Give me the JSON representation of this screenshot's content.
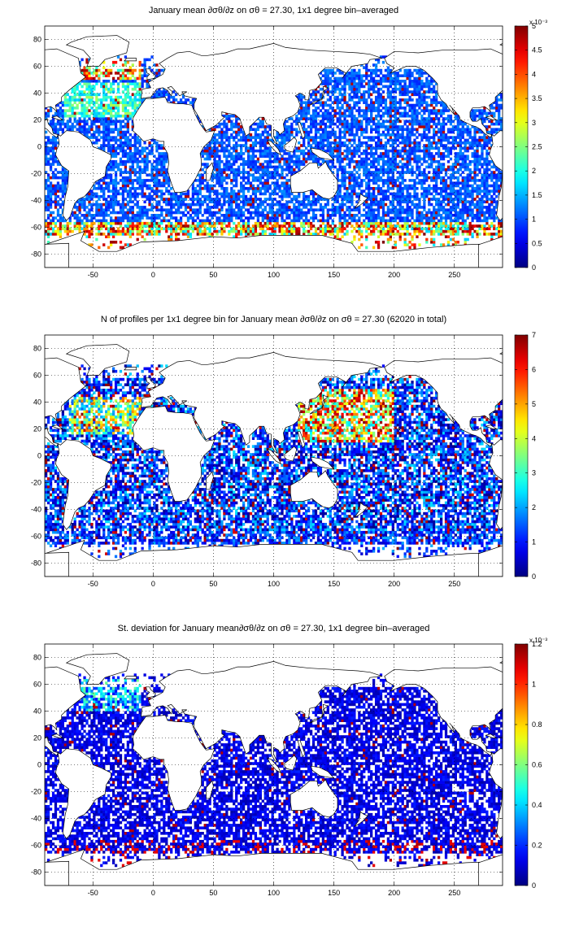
{
  "panels": [
    {
      "title_prefix": "January mean ",
      "title_mid": " on ",
      "title_suffix": " = 27.30, 1x1 degree bin–averaged",
      "gradient_symbol": "∂σθ/∂z",
      "sigma_symbol": "σθ",
      "colorbar": {
        "min": 0,
        "max": 5,
        "ticks": [
          "0",
          "0.5",
          "1",
          "1.5",
          "2",
          "2.5",
          "3",
          "3.5",
          "4",
          "4.5",
          "5"
        ],
        "multiplier": "x 10⁻³"
      },
      "field": "mean"
    },
    {
      "title_prefix": "N of profiles per 1x1 degree bin for January mean ",
      "title_mid": " on ",
      "title_suffix": " = 27.30 (62020 in total)",
      "gradient_symbol": "∂σθ/∂z",
      "sigma_symbol": "σθ",
      "colorbar": {
        "min": 0,
        "max": 7,
        "ticks": [
          "0",
          "1",
          "2",
          "3",
          "4",
          "5",
          "6",
          "7"
        ],
        "multiplier": ""
      },
      "field": "count"
    },
    {
      "title_prefix": "St. deviation for January mean",
      "title_mid": " on ",
      "title_suffix": " = 27.30, 1x1 degree bin–averaged",
      "gradient_symbol": "∂σθ/∂z",
      "sigma_symbol": "σθ",
      "colorbar": {
        "min": 0,
        "max": 1.2,
        "ticks": [
          "0",
          "0.2",
          "0.4",
          "0.6",
          "0.8",
          "1",
          "1.2"
        ],
        "multiplier": "x 10⁻³"
      },
      "field": "std"
    }
  ],
  "map_axes": {
    "xlim": [
      -90,
      290
    ],
    "ylim": [
      -90,
      90
    ],
    "xticks": [
      "-50",
      "0",
      "50",
      "100",
      "150",
      "200",
      "250"
    ],
    "yticks": [
      "80",
      "60",
      "40",
      "20",
      "0",
      "-20",
      "-40",
      "-60",
      "-80"
    ],
    "grid": "dotted"
  },
  "colormap": "jet",
  "land_color": "#ffffff",
  "coastline_color": "#000000"
}
